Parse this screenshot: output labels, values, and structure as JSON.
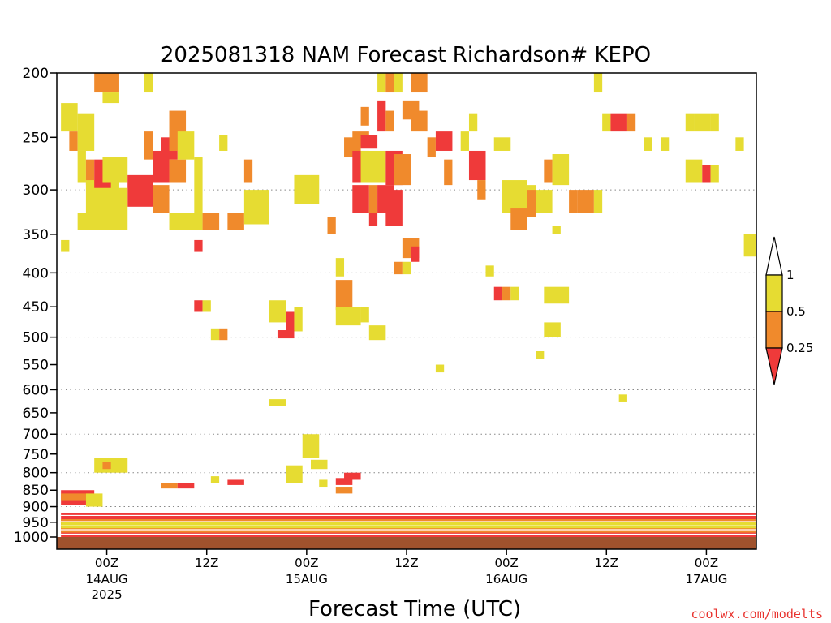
{
  "chart_data": {
    "type": "heatmap",
    "title": "2025081318 NAM Forecast Richardson# KEPO",
    "xlabel": "Forecast Time (UTC)",
    "watermark": "coolwx.com/modelts",
    "x_unit": "forecast hours from 2025-08-13 18Z",
    "xlim": [
      0,
      84
    ],
    "y_scale": "pressure (log-like)",
    "ylim_hPa": [
      1000,
      200
    ],
    "y_ticks": [
      200,
      250,
      300,
      350,
      400,
      450,
      500,
      550,
      600,
      650,
      700,
      750,
      800,
      850,
      900,
      950,
      1000
    ],
    "y_tick_labels": [
      "200",
      "250",
      "300",
      "350",
      "400",
      "450",
      "500",
      "550",
      "600",
      "650",
      "700",
      "750",
      "800",
      "850",
      "900",
      "950",
      "1000"
    ],
    "dotted_grid_levels": [
      300,
      400,
      500,
      600,
      700,
      800,
      900
    ],
    "x_ticks": [
      {
        "hour": 6,
        "label": "00Z",
        "date": "14AUG",
        "year": "2025"
      },
      {
        "hour": 18,
        "label": "12Z"
      },
      {
        "hour": 30,
        "label": "00Z",
        "date": "15AUG"
      },
      {
        "hour": 42,
        "label": "12Z"
      },
      {
        "hour": 54,
        "label": "00Z",
        "date": "16AUG"
      },
      {
        "hour": 66,
        "label": "12Z"
      },
      {
        "hour": 78,
        "label": "00Z",
        "date": "17AUG"
      }
    ],
    "legend": {
      "colors": [
        "#ef3a3a",
        "#f08a2c",
        "#e6dc32",
        "#ffffff"
      ],
      "labels": [
        "0.25",
        "0.5",
        "1"
      ],
      "bounds": [
        0,
        0.25,
        0.5,
        1,
        2
      ]
    },
    "ground_color": "#a0522d",
    "cells_note": "[hour_start, hour_end, p_top_hPa, p_bottom_hPa, category] category 0:<0.25 1:0.25-0.5 2:0.5-1",
    "cells": [
      [
        4.5,
        7.5,
        200,
        214,
        1
      ],
      [
        5.5,
        7.5,
        214,
        222,
        2
      ],
      [
        10.5,
        11.5,
        200,
        214,
        2
      ],
      [
        0.5,
        2.5,
        222,
        245,
        2
      ],
      [
        1.5,
        2.5,
        245,
        262,
        1
      ],
      [
        2.5,
        4.5,
        230,
        262,
        2
      ],
      [
        2.5,
        3.5,
        262,
        292,
        2
      ],
      [
        3.5,
        4.5,
        270,
        295,
        1
      ],
      [
        3.5,
        7.5,
        290,
        325,
        2
      ],
      [
        2.5,
        8.5,
        325,
        345,
        2
      ],
      [
        4.5,
        6.5,
        270,
        298,
        0
      ],
      [
        5.5,
        8.5,
        268,
        292,
        2
      ],
      [
        8.5,
        11.5,
        285,
        318,
        0
      ],
      [
        6.5,
        8.5,
        298,
        325,
        2
      ],
      [
        11.5,
        13.5,
        295,
        325,
        1
      ],
      [
        10.5,
        11.5,
        245,
        270,
        1
      ],
      [
        11.5,
        13.5,
        262,
        292,
        0
      ],
      [
        12.5,
        14.5,
        250,
        270,
        0
      ],
      [
        13.5,
        15.5,
        270,
        292,
        1
      ],
      [
        13.5,
        15.5,
        228,
        262,
        1
      ],
      [
        14.5,
        16.5,
        245,
        270,
        2
      ],
      [
        16.5,
        17.5,
        268,
        292,
        2
      ],
      [
        13.5,
        17.5,
        325,
        345,
        2
      ],
      [
        17.5,
        19.5,
        325,
        345,
        1
      ],
      [
        20.5,
        22.5,
        325,
        345,
        1
      ],
      [
        16.5,
        17.5,
        292,
        325,
        2
      ],
      [
        22.5,
        25.5,
        300,
        338,
        2
      ],
      [
        22.5,
        23.5,
        270,
        292,
        1
      ],
      [
        19.5,
        20.5,
        248,
        262,
        2
      ],
      [
        0.5,
        1.5,
        357,
        372,
        2
      ],
      [
        16.5,
        17.5,
        357,
        372,
        0
      ],
      [
        16.5,
        17.5,
        440,
        458,
        0
      ],
      [
        17.5,
        18.5,
        440,
        458,
        2
      ],
      [
        18.5,
        19.5,
        485,
        505,
        2
      ],
      [
        19.5,
        20.5,
        485,
        505,
        1
      ],
      [
        25.5,
        27.5,
        440,
        475,
        2
      ],
      [
        27.5,
        28.5,
        458,
        490,
        0
      ],
      [
        26.5,
        28.5,
        488,
        502,
        0
      ],
      [
        28.5,
        29.5,
        450,
        490,
        2
      ],
      [
        25.5,
        27.5,
        620,
        635,
        2
      ],
      [
        28.5,
        30.5,
        285,
        315,
        2
      ],
      [
        30.5,
        31.5,
        285,
        315,
        2
      ],
      [
        32.5,
        33.5,
        330,
        350,
        1
      ],
      [
        33.5,
        34.5,
        380,
        405,
        2
      ],
      [
        33.5,
        35.5,
        410,
        455,
        1
      ],
      [
        33.5,
        36.5,
        450,
        480,
        2
      ],
      [
        36.5,
        37.5,
        450,
        475,
        2
      ],
      [
        37.5,
        39.5,
        480,
        505,
        2
      ],
      [
        34.5,
        36.5,
        250,
        268,
        1
      ],
      [
        35.5,
        37.5,
        245,
        258,
        1
      ],
      [
        36.5,
        38.5,
        248,
        260,
        0
      ],
      [
        35.5,
        37.5,
        262,
        292,
        0
      ],
      [
        36.5,
        39.5,
        262,
        292,
        2
      ],
      [
        35.5,
        37.5,
        295,
        325,
        0
      ],
      [
        37.5,
        38.5,
        295,
        325,
        1
      ],
      [
        38.5,
        40.5,
        295,
        325,
        0
      ],
      [
        37.5,
        38.5,
        325,
        340,
        0
      ],
      [
        36.5,
        37.5,
        225,
        240,
        1
      ],
      [
        38.5,
        39.5,
        220,
        245,
        0
      ],
      [
        39.5,
        40.5,
        228,
        245,
        1
      ],
      [
        38.5,
        39.5,
        200,
        214,
        2
      ],
      [
        39.5,
        40.5,
        200,
        214,
        1
      ],
      [
        40.5,
        41.5,
        200,
        214,
        2
      ],
      [
        42.5,
        44.5,
        200,
        214,
        1
      ],
      [
        41.5,
        43.5,
        220,
        235,
        1
      ],
      [
        42.5,
        44.5,
        228,
        245,
        1
      ],
      [
        39.5,
        41.5,
        262,
        295,
        0
      ],
      [
        40.5,
        42.5,
        265,
        295,
        1
      ],
      [
        39.5,
        41.5,
        300,
        340,
        0
      ],
      [
        41.5,
        43.5,
        355,
        380,
        1
      ],
      [
        42.5,
        43.5,
        365,
        385,
        0
      ],
      [
        40.5,
        41.5,
        385,
        402,
        1
      ],
      [
        41.5,
        42.5,
        385,
        402,
        2
      ],
      [
        44.5,
        45.5,
        250,
        268,
        1
      ],
      [
        45.5,
        47.5,
        245,
        262,
        0
      ],
      [
        46.5,
        47.5,
        270,
        295,
        1
      ],
      [
        48.5,
        49.5,
        245,
        262,
        2
      ],
      [
        49.5,
        50.5,
        230,
        245,
        2
      ],
      [
        49.5,
        51.5,
        262,
        290,
        0
      ],
      [
        50.5,
        51.5,
        290,
        310,
        1
      ],
      [
        52.5,
        54.5,
        250,
        262,
        2
      ],
      [
        53.5,
        56.5,
        290,
        325,
        2
      ],
      [
        55.5,
        57.5,
        295,
        320,
        2
      ],
      [
        56.5,
        57.5,
        300,
        330,
        1
      ],
      [
        57.5,
        59.5,
        300,
        325,
        2
      ],
      [
        58.5,
        59.5,
        270,
        292,
        1
      ],
      [
        59.5,
        61.5,
        265,
        295,
        2
      ],
      [
        54.5,
        56.5,
        320,
        345,
        1
      ],
      [
        51.5,
        52.5,
        390,
        405,
        2
      ],
      [
        52.5,
        53.5,
        420,
        440,
        0
      ],
      [
        53.5,
        54.5,
        420,
        440,
        1
      ],
      [
        54.5,
        55.5,
        420,
        440,
        2
      ],
      [
        58.5,
        61.5,
        420,
        445,
        2
      ],
      [
        58.5,
        60.5,
        475,
        500,
        2
      ],
      [
        57.5,
        58.5,
        525,
        540,
        2
      ],
      [
        45.5,
        46.5,
        550,
        565,
        2
      ],
      [
        64.5,
        65.5,
        200,
        214,
        2
      ],
      [
        65.5,
        66.5,
        230,
        245,
        2
      ],
      [
        66.5,
        68.5,
        230,
        245,
        0
      ],
      [
        68.5,
        69.5,
        230,
        245,
        1
      ],
      [
        70.5,
        71.5,
        250,
        262,
        2
      ],
      [
        72.5,
        73.5,
        250,
        262,
        2
      ],
      [
        75.5,
        76.5,
        230,
        245,
        2
      ],
      [
        76.5,
        78.5,
        230,
        245,
        2
      ],
      [
        78.5,
        79.5,
        230,
        245,
        2
      ],
      [
        75.5,
        77.5,
        270,
        292,
        2
      ],
      [
        77.5,
        78.5,
        275,
        292,
        0
      ],
      [
        78.5,
        79.5,
        275,
        292,
        2
      ],
      [
        81.5,
        82.5,
        250,
        262,
        2
      ],
      [
        82.5,
        84,
        350,
        378,
        2
      ],
      [
        61.5,
        62.5,
        300,
        325,
        1
      ],
      [
        62.5,
        64.5,
        300,
        325,
        1
      ],
      [
        64.5,
        65.5,
        300,
        325,
        2
      ],
      [
        59.5,
        60.5,
        340,
        350,
        2
      ],
      [
        67.5,
        68.5,
        610,
        625,
        2
      ]
    ],
    "pbl_bands": [
      [
        0.5,
        4.5,
        850,
        895,
        0
      ],
      [
        0.5,
        3.5,
        860,
        880,
        1
      ],
      [
        3.5,
        5.5,
        860,
        900,
        2
      ],
      [
        0.5,
        84,
        920,
        1000,
        0
      ],
      [
        0.5,
        84,
        940,
        985,
        1
      ],
      [
        0.5,
        84,
        950,
        970,
        2
      ],
      [
        4.5,
        8.5,
        760,
        800,
        2
      ],
      [
        5.5,
        6.5,
        770,
        790,
        1
      ],
      [
        20.5,
        22.5,
        820,
        835,
        0
      ],
      [
        12.5,
        14.5,
        830,
        845,
        1
      ],
      [
        14.5,
        16.5,
        830,
        845,
        0
      ],
      [
        18.5,
        19.5,
        810,
        830,
        2
      ],
      [
        27.5,
        29.5,
        780,
        830,
        2
      ],
      [
        29.5,
        31.5,
        700,
        760,
        2
      ],
      [
        30.5,
        32.5,
        765,
        790,
        2
      ],
      [
        33.5,
        35.5,
        815,
        835,
        0
      ],
      [
        34.5,
        36.5,
        800,
        820,
        0
      ],
      [
        33.5,
        35.5,
        840,
        860,
        1
      ],
      [
        31.5,
        32.5,
        820,
        840,
        2
      ]
    ]
  }
}
